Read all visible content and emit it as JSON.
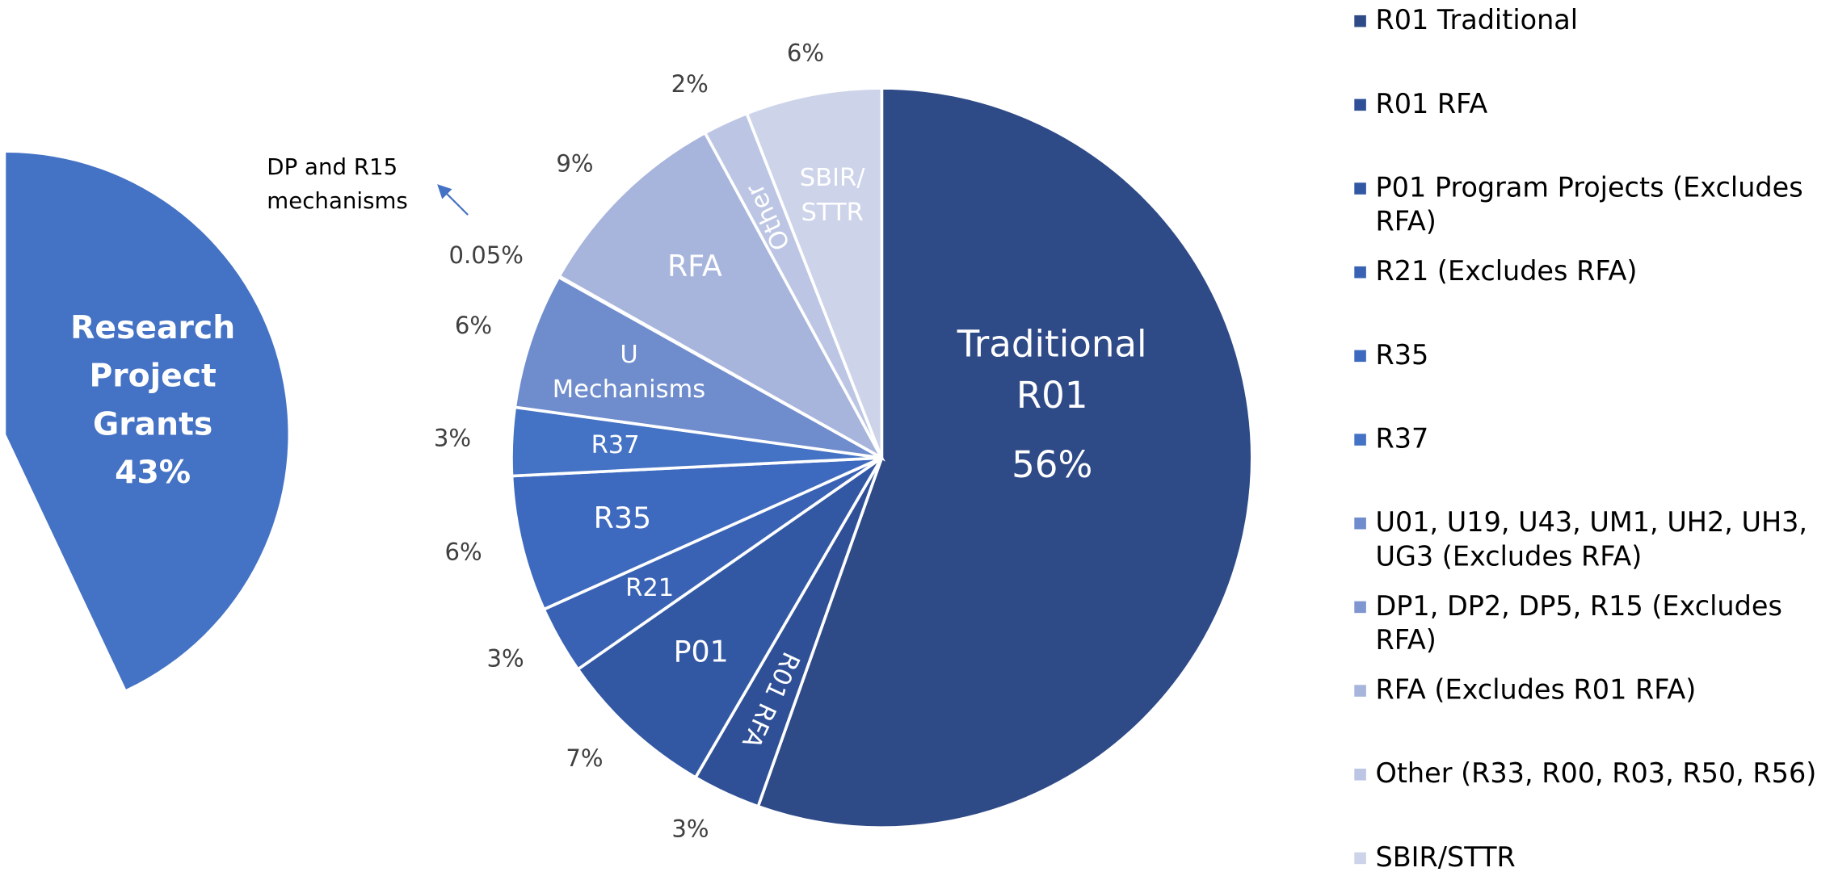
{
  "chart_data": {
    "type": "pie",
    "series": [
      {
        "name": "R01 Traditional",
        "color": "#2e4a87",
        "values": [
          56
        ],
        "value_labels": [
          "56%"
        ],
        "label_lines": [
          "Traditional",
          "R01"
        ]
      },
      {
        "name": "R01 RFA",
        "color": "#2f5097",
        "values": [
          3
        ],
        "value_labels": [
          "3%"
        ],
        "label_lines": [
          "R01 RFA"
        ]
      },
      {
        "name": "P01 Program Projects (Excludes RFA)",
        "color": "#3258a4",
        "values": [
          7
        ],
        "value_labels": [
          "7%"
        ],
        "label_lines": [
          "P01"
        ]
      },
      {
        "name": "R21 (Excludes RFA)",
        "color": "#3a62b4",
        "values": [
          3
        ],
        "value_labels": [
          "3%"
        ],
        "label_lines": [
          "R21"
        ]
      },
      {
        "name": "R35",
        "color": "#3d69bf",
        "values": [
          6
        ],
        "value_labels": [
          "6%"
        ],
        "label_lines": [
          "R35"
        ]
      },
      {
        "name": "R37",
        "color": "#4472c4",
        "values": [
          3
        ],
        "value_labels": [
          "3%"
        ],
        "label_lines": [
          "R37"
        ]
      },
      {
        "name": "U01, U19, U43, UM1, UH2, UH3, UG3 (Excludes RFA)",
        "color": "#6f8ccd",
        "values": [
          6
        ],
        "value_labels": [
          "6%"
        ],
        "label_lines": [
          "U",
          "Mechanisms"
        ]
      },
      {
        "name": "DP1, DP2, DP5, R15 (Excludes RFA)",
        "color": "#7f96d0",
        "values": [
          0.05
        ],
        "value_labels": [
          "0.05%"
        ],
        "label_lines": []
      },
      {
        "name": "RFA (Excludes R01 RFA)",
        "color": "#a7b5dc",
        "values": [
          9
        ],
        "value_labels": [
          "9%"
        ],
        "label_lines": [
          "RFA"
        ]
      },
      {
        "name": "Other (R33, R00, R03, R50, R56)",
        "color": "#bcc6e4",
        "values": [
          2
        ],
        "value_labels": [
          "2%"
        ],
        "label_lines": [
          "Other"
        ]
      },
      {
        "name": "SBIR/STTR",
        "color": "#cdd4ea",
        "values": [
          6
        ],
        "value_labels": [
          "6%"
        ],
        "label_lines": [
          "SBIR/",
          "STTR"
        ]
      }
    ],
    "parent_wedge": {
      "label_lines": [
        "Research",
        "Project",
        "Grants"
      ],
      "value": 43,
      "value_label": "43%",
      "color": "#4472c4"
    },
    "annotation": [
      "DP and R15",
      "mechanisms"
    ],
    "legend": "right"
  }
}
